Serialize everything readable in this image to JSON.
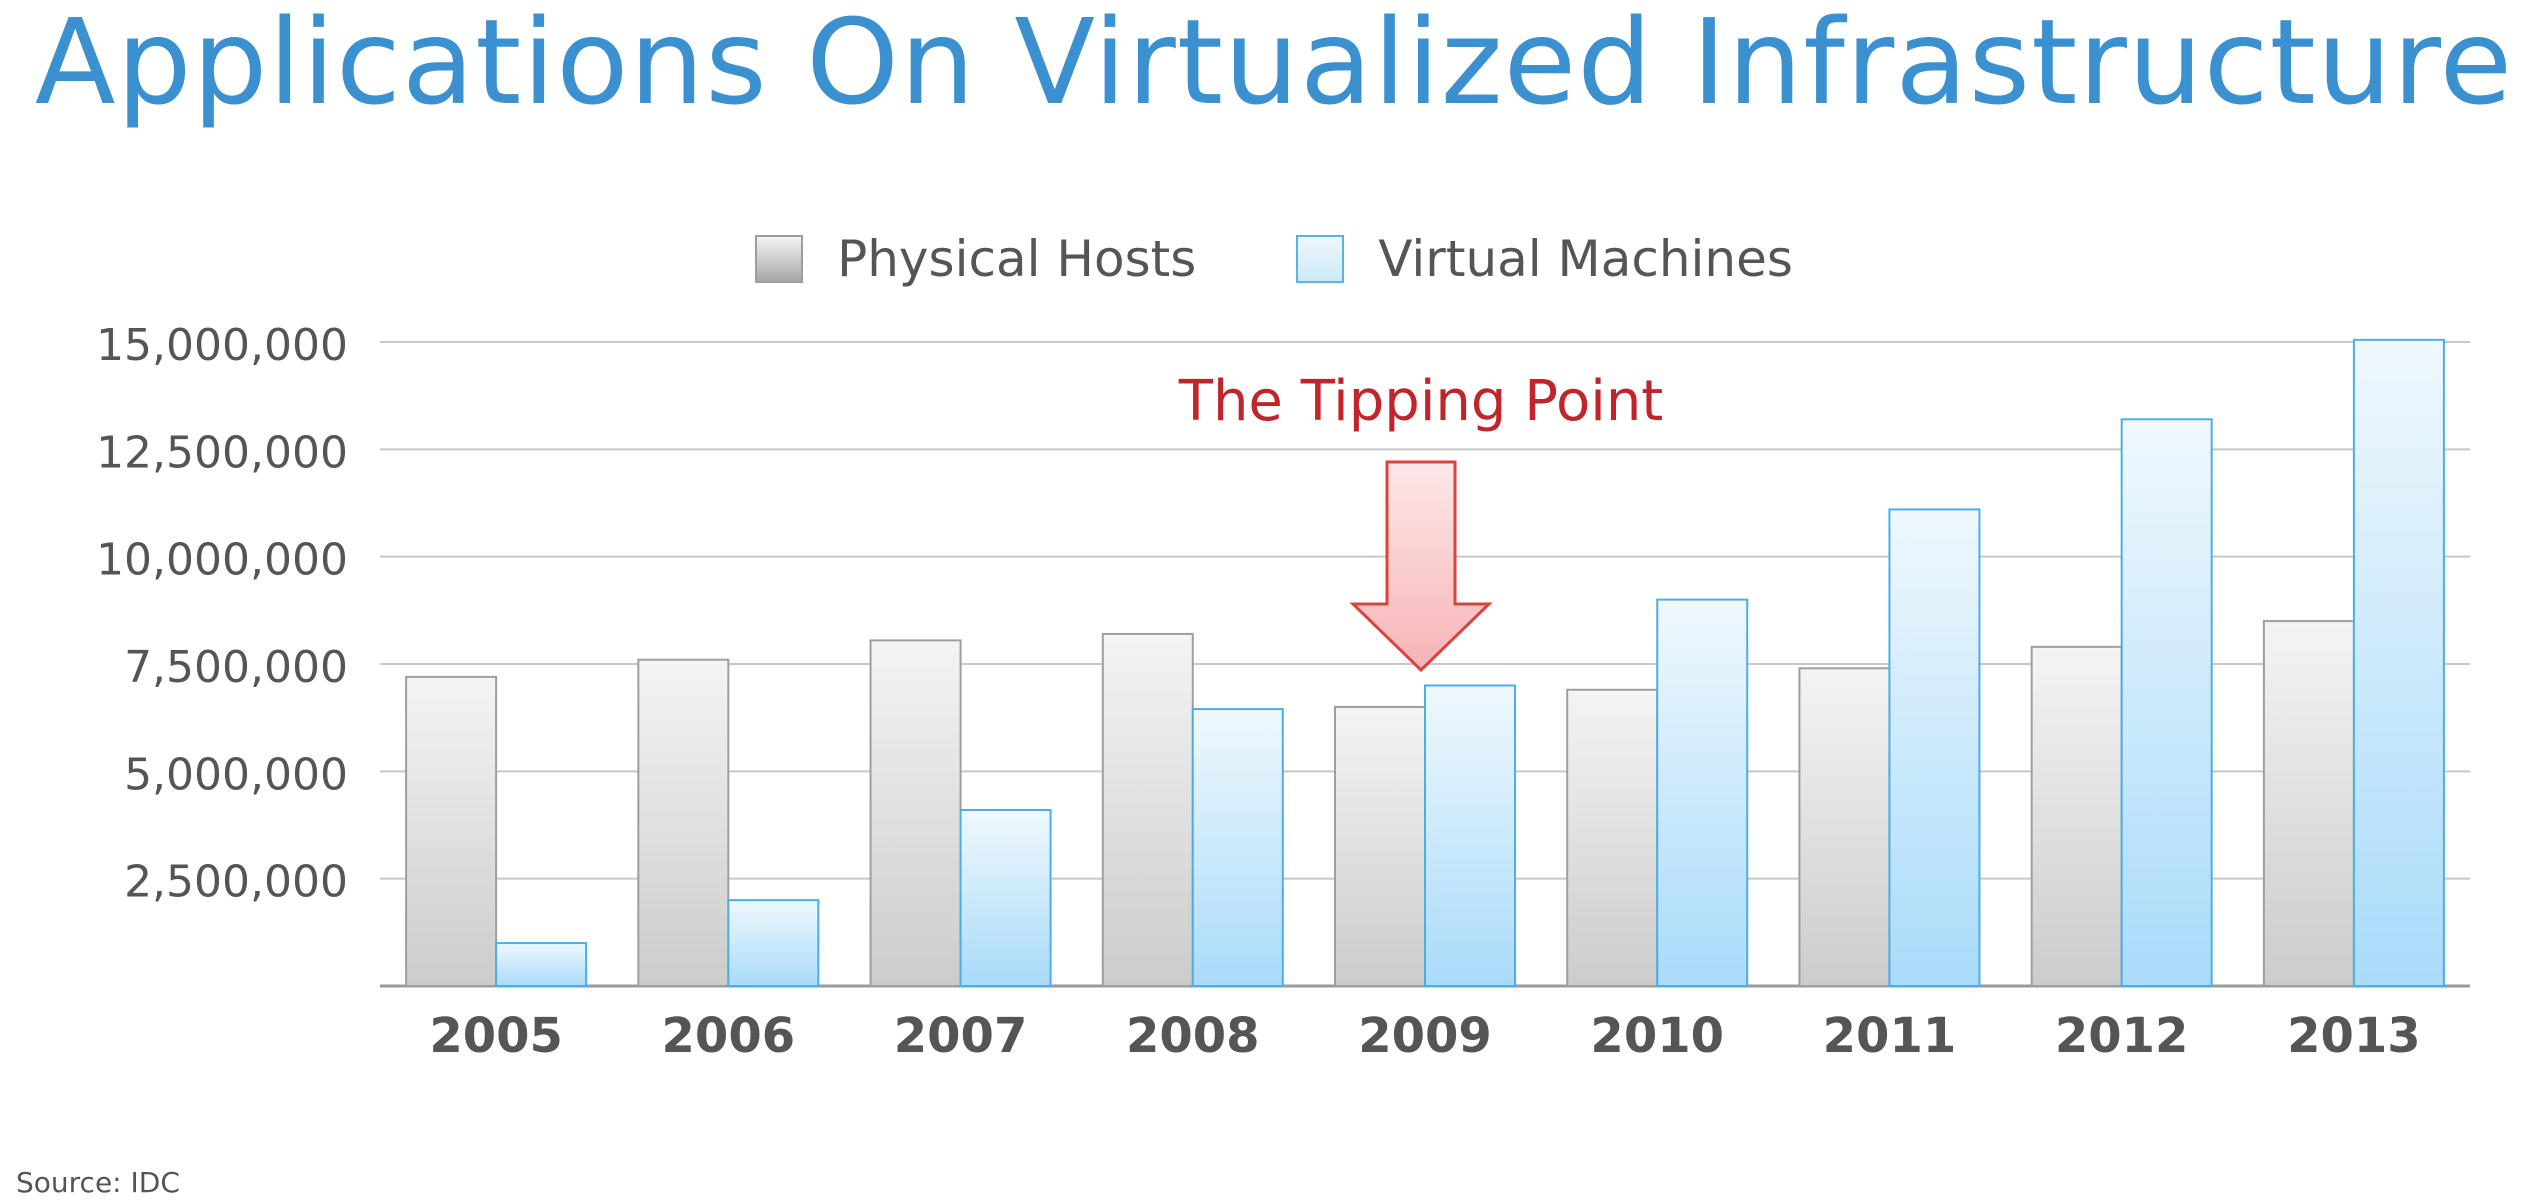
{
  "page": {
    "title": "Applications On Virtualized Infrastructure",
    "source": "Source: IDC"
  },
  "legend": [
    {
      "label": "Physical Hosts",
      "icon": "gray-gradient-swatch"
    },
    {
      "label": "Virtual Machines",
      "icon": "blue-gradient-swatch"
    }
  ],
  "annotation": {
    "text": "The Tipping Point",
    "icon": "down-arrow-icon",
    "target_category": "2009",
    "color": "#c0252c"
  },
  "colors": {
    "title": "#3b91cf",
    "physical_fill_top": "#f4f4f4",
    "physical_fill_bottom": "#cccccc",
    "physical_stroke": "#9e9e9e",
    "virtual_fill_top": "#eff8fd",
    "virtual_fill_bottom": "#a9dbfa",
    "virtual_stroke": "#4caee6",
    "grid": "#c7c7c7",
    "axis_text": "#555555",
    "annotation_text": "#c0252c"
  },
  "chart_data": {
    "type": "bar",
    "categories": [
      "2005",
      "2006",
      "2007",
      "2008",
      "2009",
      "2010",
      "2011",
      "2012",
      "2013"
    ],
    "series": [
      {
        "name": "Physical Hosts",
        "values": [
          7200000,
          7600000,
          8050000,
          8200000,
          6500000,
          6900000,
          7400000,
          7900000,
          8500000
        ]
      },
      {
        "name": "Virtual Machines",
        "values": [
          1000000,
          2000000,
          4100000,
          6450000,
          7000000,
          9000000,
          11100000,
          13200000,
          15050000
        ]
      }
    ],
    "title": "Applications On Virtualized Infrastructure",
    "xlabel": "",
    "ylabel": "",
    "ylim": [
      0,
      15000000
    ],
    "yticks": [
      2500000,
      5000000,
      7500000,
      10000000,
      12500000,
      15000000
    ],
    "ytick_labels": [
      "2,500,000",
      "5,000,000",
      "7,500,000",
      "10,000,000",
      "12,500,000",
      "15,000,000"
    ],
    "grid": true,
    "legend_position": "top"
  }
}
